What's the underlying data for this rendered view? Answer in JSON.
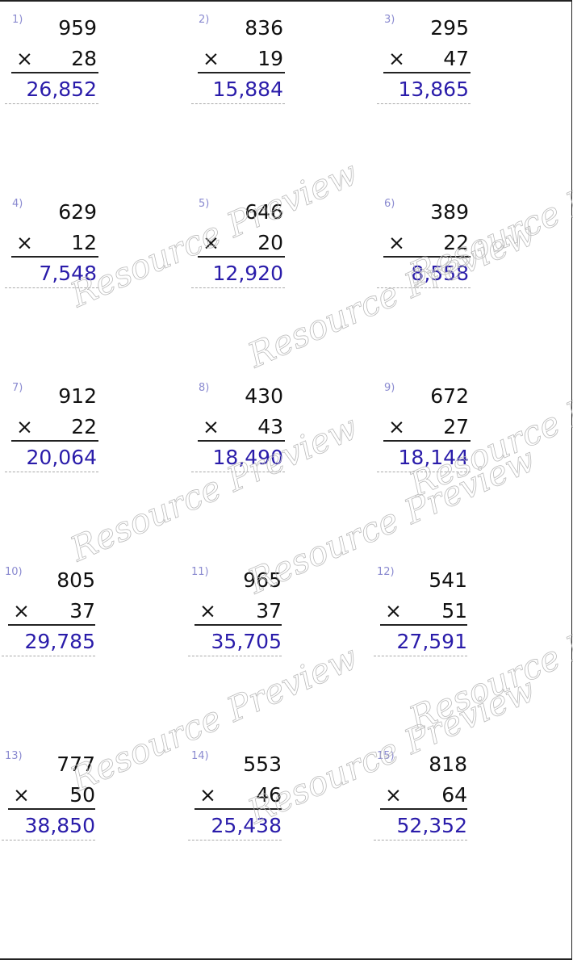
{
  "watermark": "Resource Preview",
  "colors": {
    "answer": "#2a1caa",
    "label": "#8a8ad0",
    "text": "#111111"
  },
  "operator": "×",
  "problems": [
    {
      "label": "1)",
      "top": "959",
      "multiplier": "28",
      "answer": "26,852"
    },
    {
      "label": "2)",
      "top": "836",
      "multiplier": "19",
      "answer": "15,884"
    },
    {
      "label": "3)",
      "top": "295",
      "multiplier": "47",
      "answer": "13,865"
    },
    {
      "label": "4)",
      "top": "629",
      "multiplier": "12",
      "answer": "7,548"
    },
    {
      "label": "5)",
      "top": "646",
      "multiplier": "20",
      "answer": "12,920"
    },
    {
      "label": "6)",
      "top": "389",
      "multiplier": "22",
      "answer": "8,558"
    },
    {
      "label": "7)",
      "top": "912",
      "multiplier": "22",
      "answer": "20,064"
    },
    {
      "label": "8)",
      "top": "430",
      "multiplier": "43",
      "answer": "18,490"
    },
    {
      "label": "9)",
      "top": "672",
      "multiplier": "27",
      "answer": "18,144"
    },
    {
      "label": "10)",
      "top": "805",
      "multiplier": "37",
      "answer": "29,785"
    },
    {
      "label": "11)",
      "top": "965",
      "multiplier": "37",
      "answer": "35,705"
    },
    {
      "label": "12)",
      "top": "541",
      "multiplier": "51",
      "answer": "27,591"
    },
    {
      "label": "13)",
      "top": "777",
      "multiplier": "50",
      "answer": "38,850"
    },
    {
      "label": "14)",
      "top": "553",
      "multiplier": "46",
      "answer": "25,438"
    },
    {
      "label": "15)",
      "top": "818",
      "multiplier": "64",
      "answer": "52,352"
    }
  ]
}
